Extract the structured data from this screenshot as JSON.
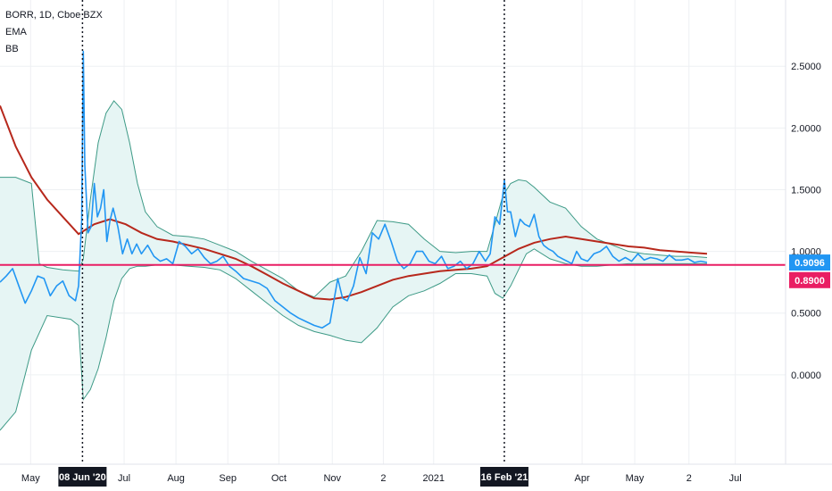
{
  "legend": {
    "symbol": "BORR, 1D, Cboe BZX",
    "ema": "EMA",
    "bb": "BB"
  },
  "colors": {
    "price": "#2196f3",
    "ema": "#b7281c",
    "bands": "#3d9a86",
    "band_fill": "#e6f5f4",
    "hline": "#e91e63",
    "price_badge": "#2196f3",
    "hline_badge": "#e91e63",
    "grid": "#eef0f3"
  },
  "chart_data": {
    "type": "line",
    "y_ticks": [
      "2.5000",
      "2.0000",
      "1.5000",
      "1.0000",
      "0.5000",
      "0.0000"
    ],
    "y_tick_values": [
      2.5,
      2.0,
      1.5,
      1.0,
      0.5,
      0.0
    ],
    "ylim": [
      -0.58,
      2.95
    ],
    "xlim": [
      0,
      100
    ],
    "x_ticks": [
      "May",
      "Jul",
      "Aug",
      "Sep",
      "Oct",
      "Nov",
      "2",
      "2021",
      "Apr",
      "May",
      "2",
      "Jul"
    ],
    "x_tick_positions": [
      3.9,
      15.8,
      22.4,
      29.0,
      35.5,
      42.3,
      48.8,
      55.2,
      74.1,
      80.8,
      87.7,
      93.6
    ],
    "x_highlight_labels": [
      "08 Jun '20",
      "16 Feb '21"
    ],
    "x_highlight_positions": [
      10.5,
      64.2
    ],
    "price_label": "0.9096",
    "hline_label": "0.8900",
    "hline_value": 0.89,
    "series": [
      {
        "key": "price",
        "x": [
          0,
          0.8,
          1.6,
          2.4,
          3.2,
          4.0,
          4.8,
          5.6,
          6.4,
          7.2,
          8.0,
          8.8,
          9.6,
          10.0,
          10.4,
          10.6,
          10.8,
          11.2,
          11.6,
          12.0,
          12.4,
          12.8,
          13.2,
          13.6,
          14.0,
          14.4,
          15.0,
          15.6,
          16.2,
          16.8,
          17.4,
          18.0,
          18.8,
          19.6,
          20.4,
          21.2,
          22.0,
          22.8,
          23.6,
          24.4,
          25.2,
          26.0,
          26.8,
          27.6,
          28.4,
          29.2,
          30.0,
          31.0,
          32.0,
          33.0,
          34.0,
          35.0,
          36.0,
          37.0,
          38.0,
          39.0,
          40.0,
          41.0,
          42.0,
          43.0,
          43.6,
          44.2,
          45.0,
          45.8,
          46.6,
          47.4,
          48.2,
          49.0,
          49.8,
          50.6,
          51.4,
          52.2,
          53.0,
          53.8,
          54.6,
          55.4,
          56.2,
          57.0,
          57.8,
          58.6,
          59.4,
          60.2,
          61.0,
          61.8,
          62.4,
          63.0,
          63.6,
          64.2,
          64.6,
          65.0,
          65.6,
          66.2,
          66.8,
          67.4,
          68.0,
          68.6,
          69.2,
          69.8,
          70.4,
          71.0,
          71.6,
          72.2,
          72.8,
          73.4,
          74.0,
          74.8,
          75.6,
          76.4,
          77.2,
          78.0,
          78.8,
          79.6,
          80.4,
          81.2,
          82.0,
          82.8,
          83.6,
          84.4,
          85.2,
          86.0,
          86.8,
          87.6,
          88.4,
          89.2,
          90.0
        ],
        "values": [
          0.75,
          0.8,
          0.86,
          0.72,
          0.58,
          0.68,
          0.8,
          0.78,
          0.64,
          0.72,
          0.76,
          0.64,
          0.6,
          0.72,
          1.25,
          2.62,
          1.7,
          1.15,
          1.2,
          1.55,
          1.28,
          1.35,
          1.5,
          1.08,
          1.25,
          1.35,
          1.2,
          0.98,
          1.1,
          0.98,
          1.06,
          0.98,
          1.05,
          0.96,
          0.92,
          0.94,
          0.9,
          1.08,
          1.04,
          0.98,
          1.02,
          0.95,
          0.9,
          0.92,
          0.96,
          0.88,
          0.84,
          0.78,
          0.76,
          0.74,
          0.7,
          0.6,
          0.55,
          0.5,
          0.46,
          0.43,
          0.4,
          0.38,
          0.42,
          0.78,
          0.62,
          0.6,
          0.72,
          0.95,
          0.82,
          1.15,
          1.1,
          1.22,
          1.08,
          0.92,
          0.86,
          0.9,
          1.0,
          1.0,
          0.92,
          0.9,
          0.96,
          0.86,
          0.88,
          0.92,
          0.86,
          0.9,
          1.0,
          0.92,
          0.98,
          1.28,
          1.22,
          1.58,
          1.32,
          1.32,
          1.12,
          1.26,
          1.22,
          1.2,
          1.3,
          1.12,
          1.05,
          1.02,
          1.0,
          0.96,
          0.94,
          0.92,
          0.9,
          1.0,
          0.94,
          0.92,
          0.98,
          1.0,
          1.04,
          0.96,
          0.92,
          0.95,
          0.92,
          0.98,
          0.93,
          0.95,
          0.94,
          0.92,
          0.97,
          0.93,
          0.93,
          0.94,
          0.91,
          0.92,
          0.91
        ],
        "name": ""
      },
      {
        "key": "ema",
        "x": [
          0,
          2,
          4,
          6,
          8,
          10,
          12,
          14,
          16,
          18,
          20,
          22,
          24,
          26,
          28,
          30,
          32,
          34,
          36,
          38,
          40,
          42,
          44,
          46,
          48,
          50,
          52,
          54,
          56,
          58,
          60,
          62,
          64,
          66,
          68,
          70,
          72,
          74,
          76,
          78,
          80,
          82,
          84,
          86,
          88,
          90
        ],
        "values": [
          2.18,
          1.85,
          1.6,
          1.42,
          1.28,
          1.14,
          1.22,
          1.26,
          1.22,
          1.15,
          1.1,
          1.08,
          1.05,
          1.02,
          0.98,
          0.94,
          0.88,
          0.81,
          0.74,
          0.68,
          0.62,
          0.61,
          0.63,
          0.67,
          0.72,
          0.77,
          0.8,
          0.82,
          0.84,
          0.85,
          0.86,
          0.88,
          0.95,
          1.02,
          1.07,
          1.1,
          1.12,
          1.1,
          1.08,
          1.06,
          1.04,
          1.03,
          1.01,
          1.0,
          0.99,
          0.98
        ],
        "name": ""
      },
      {
        "key": "bb_upper",
        "x": [
          0,
          2,
          4,
          5,
          6,
          8,
          10,
          10.6,
          11.5,
          12.5,
          13.5,
          14.5,
          15.5,
          16.5,
          17.5,
          18.5,
          20,
          22,
          24,
          26,
          28,
          30,
          32,
          34,
          36,
          38,
          40,
          42,
          44,
          46,
          48,
          50,
          52,
          54,
          56,
          58,
          60,
          62,
          63,
          64,
          65,
          66,
          67,
          68,
          70,
          72,
          74,
          76,
          78,
          80,
          82,
          84,
          86,
          88,
          90
        ],
        "values": [
          1.6,
          1.6,
          1.55,
          0.9,
          0.87,
          0.85,
          0.84,
          0.94,
          1.42,
          1.88,
          2.12,
          2.22,
          2.15,
          1.88,
          1.55,
          1.32,
          1.2,
          1.13,
          1.12,
          1.1,
          1.05,
          1.0,
          0.92,
          0.85,
          0.78,
          0.68,
          0.63,
          0.75,
          0.8,
          1.0,
          1.25,
          1.24,
          1.22,
          1.1,
          1.0,
          0.99,
          1.0,
          1.0,
          1.22,
          1.45,
          1.55,
          1.58,
          1.57,
          1.52,
          1.4,
          1.35,
          1.2,
          1.1,
          1.05,
          1.0,
          0.98,
          0.97,
          0.96,
          0.96,
          0.95
        ],
        "name": ""
      },
      {
        "key": "bb_lower",
        "x": [
          0,
          2,
          4,
          6,
          8,
          9,
          10,
          10.6,
          11.5,
          12.5,
          13.5,
          14.5,
          15.5,
          16.5,
          17.5,
          18.5,
          20,
          22,
          24,
          26,
          28,
          30,
          32,
          34,
          36,
          38,
          40,
          42,
          44,
          46,
          48,
          50,
          52,
          54,
          56,
          58,
          60,
          62,
          63,
          64,
          65,
          66,
          67,
          68,
          70,
          72,
          74,
          76,
          78,
          80,
          82,
          84,
          86,
          88,
          90
        ],
        "values": [
          -0.45,
          -0.3,
          0.2,
          0.48,
          0.46,
          0.45,
          0.4,
          -0.2,
          -0.12,
          0.05,
          0.3,
          0.6,
          0.78,
          0.86,
          0.88,
          0.88,
          0.89,
          0.89,
          0.88,
          0.87,
          0.85,
          0.78,
          0.68,
          0.58,
          0.48,
          0.4,
          0.35,
          0.32,
          0.28,
          0.26,
          0.38,
          0.55,
          0.64,
          0.68,
          0.74,
          0.82,
          0.82,
          0.8,
          0.66,
          0.62,
          0.72,
          0.85,
          0.98,
          1.02,
          0.94,
          0.9,
          0.88,
          0.88,
          0.89,
          0.9,
          0.9,
          0.9,
          0.9,
          0.9,
          0.9
        ],
        "name": ""
      }
    ]
  }
}
